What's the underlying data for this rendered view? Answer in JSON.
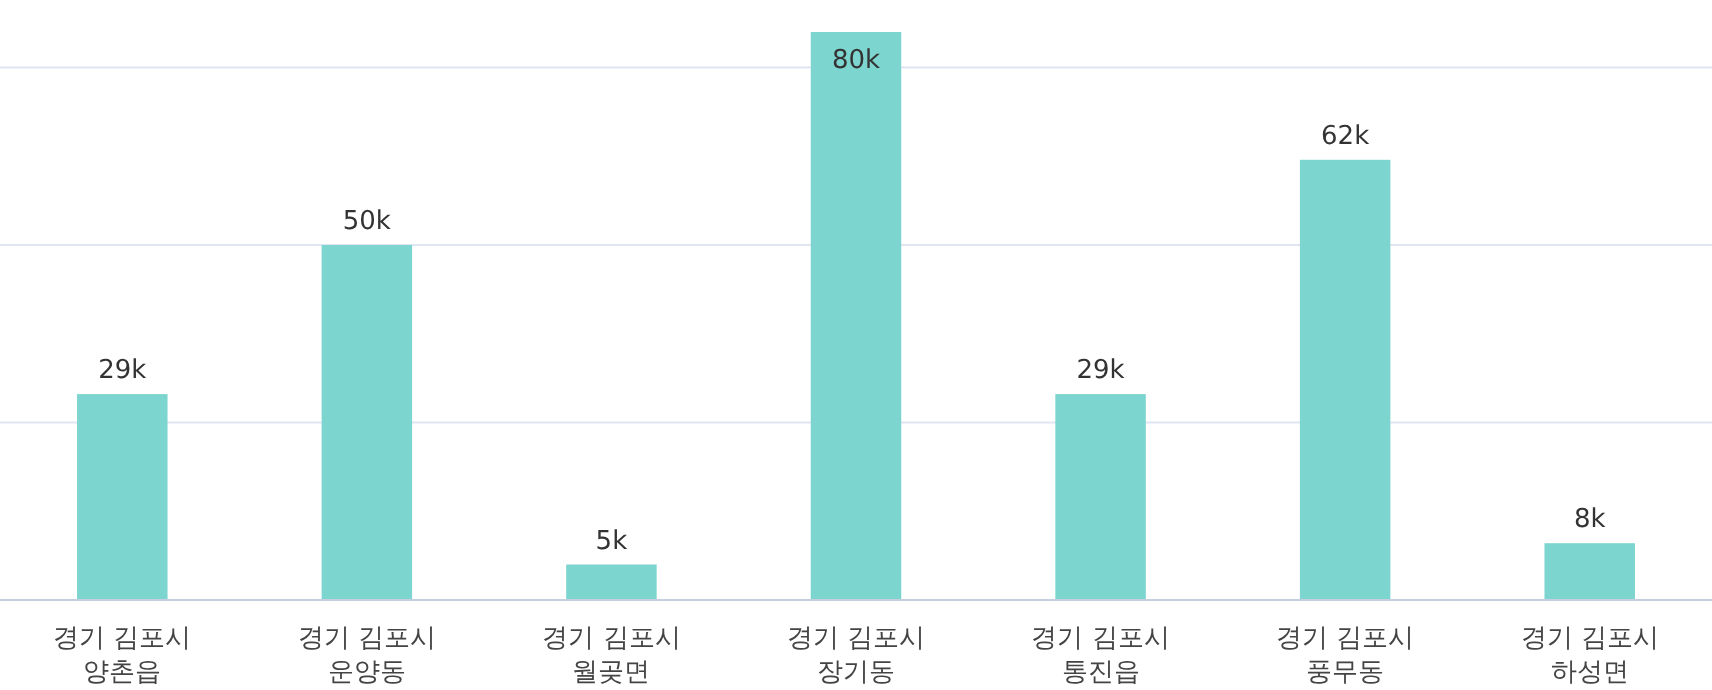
{
  "chart_data": {
    "type": "bar",
    "categories": [
      "경기 김포시 양촌읍",
      "경기 김포시 운양동",
      "경기 김포시 월곶면",
      "경기 김포시 장기동",
      "경기 김포시 통진읍",
      "경기 김포시 풍무동",
      "경기 김포시 하성면"
    ],
    "values": [
      29000,
      50000,
      5000,
      80000,
      29000,
      62000,
      8000
    ],
    "value_labels": [
      "29k",
      "50k",
      "5k",
      "80k",
      "29k",
      "62k",
      "8k"
    ],
    "color": "#7dd5cf",
    "yticks": [
      {
        "value": 0,
        "label": null
      },
      {
        "value": 25000,
        "label": null
      },
      {
        "value": 50000,
        "label": null
      },
      {
        "value": 75000,
        "label": null
      }
    ],
    "tick_labels": "x",
    "grid": "y"
  }
}
